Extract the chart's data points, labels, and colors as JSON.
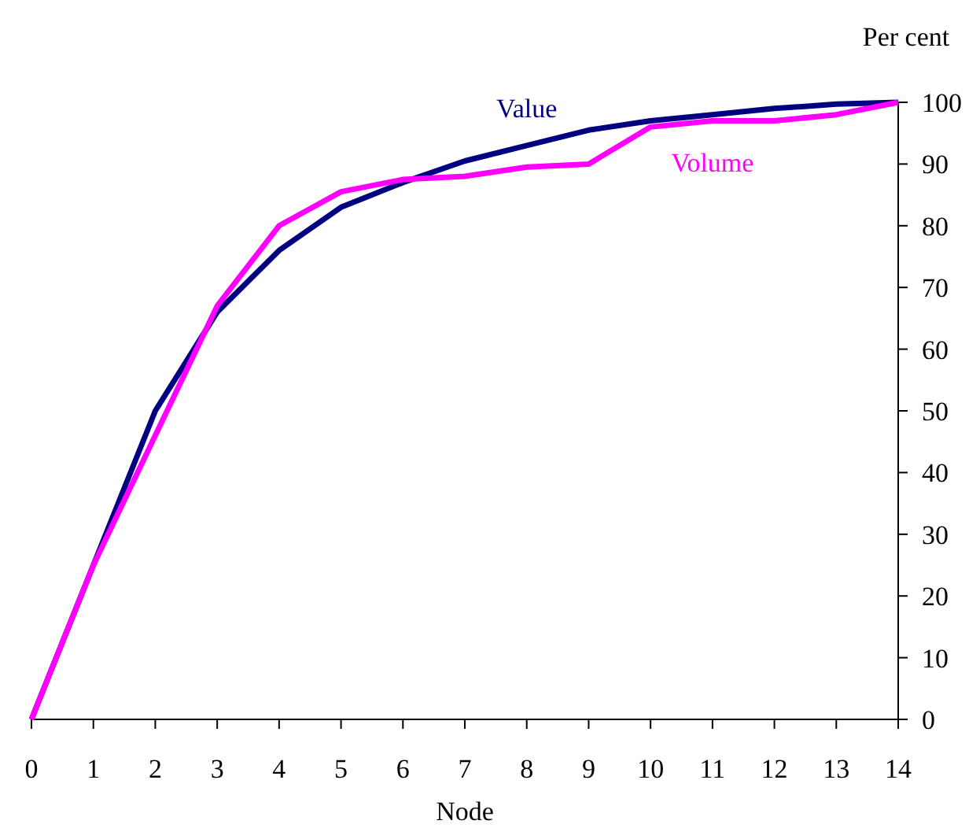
{
  "chart_data": {
    "type": "line",
    "xlabel": "Node",
    "ylabel": "Per cent",
    "x": [
      0,
      1,
      2,
      3,
      4,
      5,
      6,
      7,
      8,
      9,
      10,
      11,
      12,
      13,
      14
    ],
    "series": [
      {
        "name": "Value",
        "color": "#000080",
        "values": [
          0,
          25,
          50,
          66,
          76,
          83,
          87,
          90.5,
          93,
          95.5,
          97,
          98,
          99,
          99.7,
          100
        ]
      },
      {
        "name": "Volume",
        "color": "#ff00ff",
        "values": [
          0,
          25,
          46,
          67,
          80,
          85.5,
          87.5,
          88,
          89.5,
          90,
          96,
          97,
          97,
          98,
          100
        ]
      }
    ],
    "xlim": [
      0,
      14
    ],
    "xticks": [
      0,
      1,
      2,
      3,
      4,
      5,
      6,
      7,
      8,
      9,
      10,
      11,
      12,
      13,
      14
    ],
    "ylim": [
      0,
      100
    ],
    "yticks": [
      0,
      10,
      20,
      30,
      40,
      50,
      60,
      70,
      80,
      90,
      100
    ],
    "grid": false,
    "marker": "none",
    "line_style": "solid"
  }
}
